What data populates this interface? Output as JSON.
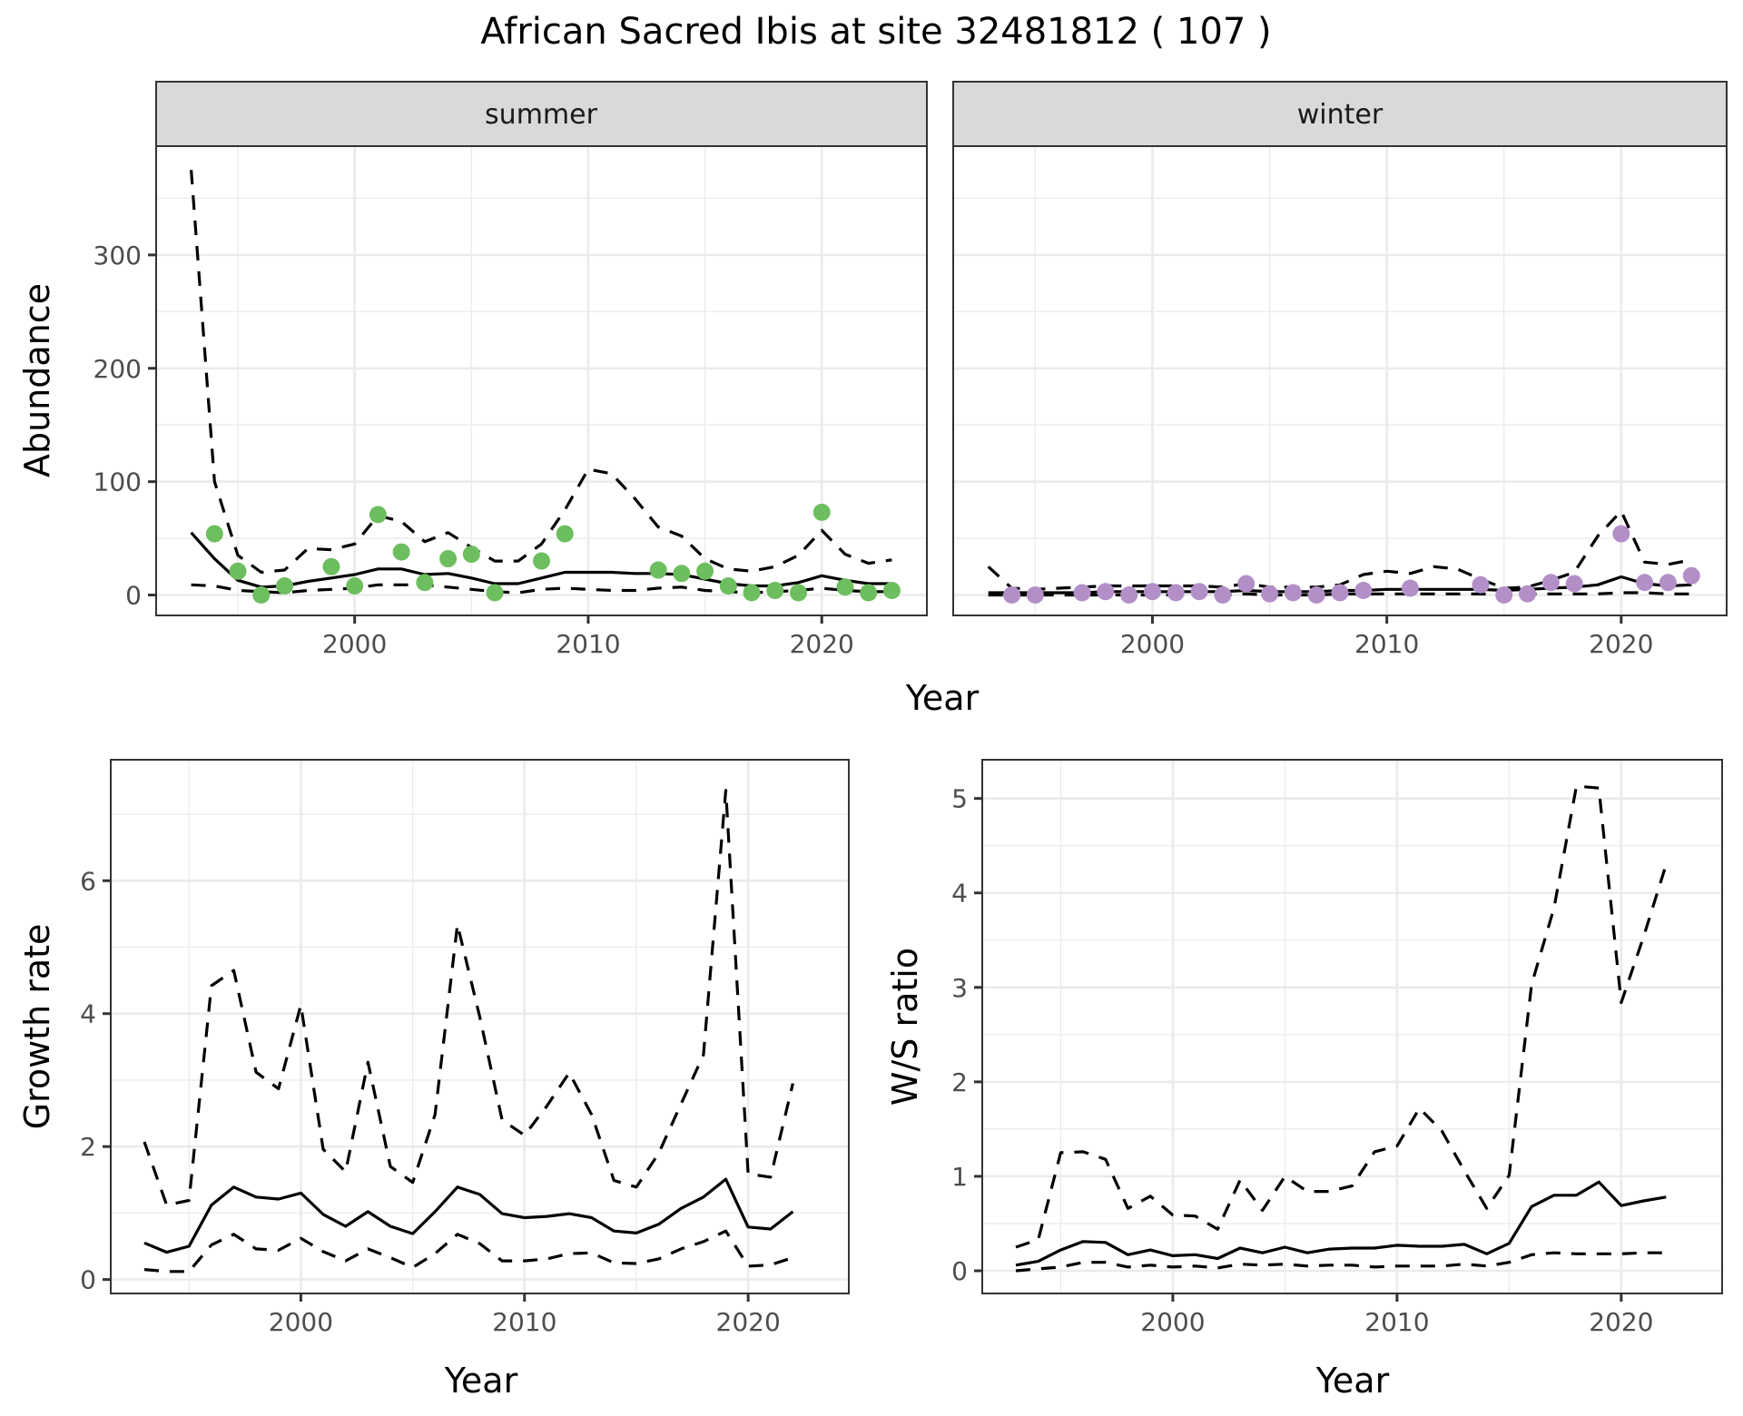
{
  "title": "African Sacred Ibis at site 32481812 ( 107 )",
  "colors": {
    "summer_points": "#6dbe5e",
    "winter_points": "#b38fc8",
    "lines": "#000000",
    "strip": "#d9d9d9"
  },
  "chart_data": [
    {
      "id": "abundance",
      "type": "line",
      "facets": [
        "summer",
        "winter"
      ],
      "title": "",
      "xlabel": "Year",
      "ylabel": "Abundance",
      "xlim": [
        1991.5,
        2024.5
      ],
      "ylim": [
        -18,
        396
      ],
      "xticks": [
        2000,
        2010,
        2020
      ],
      "yticks": [
        0,
        100,
        200,
        300
      ],
      "grid": true,
      "legend": "none",
      "panels": {
        "summer": {
          "label": "summer",
          "x": [
            1993,
            1994,
            1995,
            1996,
            1997,
            1998,
            1999,
            2000,
            2001,
            2002,
            2003,
            2004,
            2005,
            2006,
            2007,
            2008,
            2009,
            2010,
            2011,
            2012,
            2013,
            2014,
            2015,
            2016,
            2017,
            2018,
            2019,
            2020,
            2021,
            2022,
            2023
          ],
          "estimate": [
            55,
            32,
            13,
            7,
            8,
            12,
            15,
            18,
            23,
            23,
            18,
            19,
            15,
            10,
            10,
            15,
            20,
            20,
            20,
            19,
            19,
            18,
            14,
            10,
            8,
            8,
            11,
            17,
            13,
            10,
            10
          ],
          "upper": [
            375,
            100,
            35,
            20,
            22,
            41,
            40,
            45,
            70,
            65,
            47,
            55,
            42,
            30,
            30,
            45,
            75,
            111,
            107,
            85,
            60,
            52,
            32,
            23,
            21,
            25,
            35,
            57,
            36,
            28,
            31
          ],
          "lower": [
            9,
            8,
            4,
            3,
            2,
            4,
            5,
            6,
            9,
            9,
            9,
            7,
            5,
            3,
            2,
            5,
            6,
            5,
            4,
            4,
            6,
            7,
            4,
            3,
            2,
            3,
            4,
            6,
            4,
            3,
            3
          ],
          "observed": {
            "x": [
              1994,
              1995,
              1996,
              1997,
              1999,
              2000,
              2001,
              2002,
              2003,
              2004,
              2005,
              2006,
              2008,
              2009,
              2013,
              2014,
              2015,
              2016,
              2017,
              2018,
              2019,
              2020,
              2021,
              2022,
              2023
            ],
            "y": [
              54,
              21,
              0,
              8,
              25,
              8,
              71,
              38,
              11,
              32,
              36,
              2,
              30,
              54,
              22,
              19,
              21,
              8,
              2,
              4,
              2,
              73,
              7,
              2,
              4
            ]
          }
        },
        "winter": {
          "label": "winter",
          "x": [
            1993,
            1994,
            1995,
            1996,
            1997,
            1998,
            1999,
            2000,
            2001,
            2002,
            2003,
            2004,
            2005,
            2006,
            2007,
            2008,
            2009,
            2010,
            2011,
            2012,
            2013,
            2014,
            2015,
            2016,
            2017,
            2018,
            2019,
            2020,
            2021,
            2022,
            2023
          ],
          "estimate": [
            2,
            2,
            2,
            2,
            2,
            3,
            3,
            3,
            3,
            3,
            3,
            4,
            3,
            3,
            3,
            4,
            4,
            5,
            5,
            5,
            5,
            5,
            4,
            5,
            6,
            7,
            9,
            16,
            10,
            8,
            9
          ],
          "upper": [
            25,
            6,
            5,
            6,
            7,
            8,
            8,
            8,
            8,
            8,
            7,
            10,
            7,
            7,
            7,
            9,
            18,
            21,
            19,
            25,
            23,
            14,
            6,
            7,
            13,
            20,
            52,
            74,
            29,
            27,
            31
          ],
          "lower": [
            0,
            0,
            0,
            0,
            0,
            0,
            0,
            0,
            0,
            1,
            0,
            1,
            0,
            0,
            0,
            1,
            1,
            1,
            1,
            1,
            1,
            1,
            0,
            1,
            1,
            1,
            1,
            2,
            2,
            1,
            1
          ],
          "observed": {
            "x": [
              1994,
              1995,
              1997,
              1998,
              1999,
              2000,
              2001,
              2002,
              2003,
              2004,
              2005,
              2006,
              2007,
              2008,
              2009,
              2011,
              2014,
              2015,
              2016,
              2017,
              2018,
              2020,
              2021,
              2022,
              2023
            ],
            "y": [
              0,
              0,
              2,
              3,
              0,
              3,
              2,
              3,
              0,
              10,
              1,
              2,
              0,
              2,
              4,
              6,
              9,
              0,
              1,
              11,
              10,
              54,
              11,
              11,
              17
            ]
          }
        }
      }
    },
    {
      "id": "growth",
      "type": "line",
      "title": "",
      "xlabel": "Year",
      "ylabel": "Growth rate",
      "xlim": [
        1991.5,
        2024.5
      ],
      "ylim": [
        -0.21,
        7.82
      ],
      "xticks": [
        2000,
        2010,
        2020
      ],
      "yticks": [
        0,
        2,
        4,
        6
      ],
      "grid": true,
      "legend": "none",
      "x": [
        1993,
        1994,
        1995,
        1996,
        1997,
        1998,
        1999,
        2000,
        2001,
        2002,
        2003,
        2004,
        2005,
        2006,
        2007,
        2008,
        2009,
        2010,
        2011,
        2012,
        2013,
        2014,
        2015,
        2016,
        2017,
        2018,
        2019,
        2020,
        2021,
        2022
      ],
      "series": [
        {
          "name": "estimate",
          "style": "solid",
          "values": [
            0.55,
            0.41,
            0.5,
            1.12,
            1.39,
            1.24,
            1.21,
            1.3,
            0.98,
            0.8,
            1.02,
            0.8,
            0.69,
            1.02,
            1.39,
            1.28,
            0.99,
            0.93,
            0.95,
            0.99,
            0.93,
            0.73,
            0.7,
            0.83,
            1.07,
            1.24,
            1.51,
            0.79,
            0.76,
            1.02
          ]
        },
        {
          "name": "upper",
          "style": "dashed",
          "values": [
            2.07,
            1.12,
            1.19,
            4.42,
            4.65,
            3.12,
            2.87,
            4.13,
            1.96,
            1.62,
            3.27,
            1.7,
            1.46,
            2.48,
            5.34,
            3.95,
            2.4,
            2.17,
            2.61,
            3.11,
            2.48,
            1.49,
            1.39,
            1.9,
            2.64,
            3.38,
            7.36,
            1.59,
            1.54,
            2.95
          ]
        },
        {
          "name": "lower",
          "style": "dashed",
          "values": [
            0.15,
            0.12,
            0.12,
            0.52,
            0.68,
            0.46,
            0.44,
            0.62,
            0.42,
            0.28,
            0.46,
            0.33,
            0.18,
            0.39,
            0.68,
            0.54,
            0.28,
            0.28,
            0.31,
            0.39,
            0.4,
            0.25,
            0.24,
            0.31,
            0.46,
            0.57,
            0.73,
            0.2,
            0.22,
            0.33
          ]
        }
      ]
    },
    {
      "id": "ws_ratio",
      "type": "line",
      "title": "",
      "xlabel": "Year",
      "ylabel": "W/S ratio",
      "xlim": [
        1991.5,
        2024.5
      ],
      "ylim": [
        -0.24,
        5.41
      ],
      "xticks": [
        2000,
        2010,
        2020
      ],
      "yticks": [
        0,
        1,
        2,
        3,
        4,
        5
      ],
      "grid": true,
      "legend": "none",
      "x": [
        1993,
        1994,
        1995,
        1996,
        1997,
        1998,
        1999,
        2000,
        2001,
        2002,
        2003,
        2004,
        2005,
        2006,
        2007,
        2008,
        2009,
        2010,
        2011,
        2012,
        2013,
        2014,
        2015,
        2016,
        2017,
        2018,
        2019,
        2020,
        2021,
        2022
      ],
      "series": [
        {
          "name": "estimate",
          "style": "solid",
          "values": [
            0.06,
            0.1,
            0.22,
            0.31,
            0.3,
            0.17,
            0.22,
            0.16,
            0.17,
            0.13,
            0.24,
            0.19,
            0.25,
            0.19,
            0.23,
            0.24,
            0.24,
            0.27,
            0.26,
            0.26,
            0.28,
            0.18,
            0.29,
            0.68,
            0.8,
            0.8,
            0.94,
            0.69,
            0.74,
            0.78
          ]
        },
        {
          "name": "upper",
          "style": "dashed",
          "values": [
            0.25,
            0.33,
            1.25,
            1.26,
            1.18,
            0.66,
            0.79,
            0.59,
            0.58,
            0.44,
            0.96,
            0.64,
            1.0,
            0.84,
            0.84,
            0.9,
            1.26,
            1.32,
            1.72,
            1.48,
            1.06,
            0.66,
            1.01,
            3.03,
            3.84,
            5.13,
            5.11,
            2.84,
            3.54,
            4.3
          ]
        },
        {
          "name": "lower",
          "style": "dashed",
          "values": [
            0.0,
            0.02,
            0.04,
            0.09,
            0.09,
            0.04,
            0.06,
            0.04,
            0.05,
            0.03,
            0.07,
            0.06,
            0.07,
            0.05,
            0.06,
            0.06,
            0.04,
            0.05,
            0.05,
            0.05,
            0.07,
            0.05,
            0.09,
            0.17,
            0.19,
            0.18,
            0.18,
            0.18,
            0.19,
            0.19
          ]
        }
      ]
    }
  ]
}
